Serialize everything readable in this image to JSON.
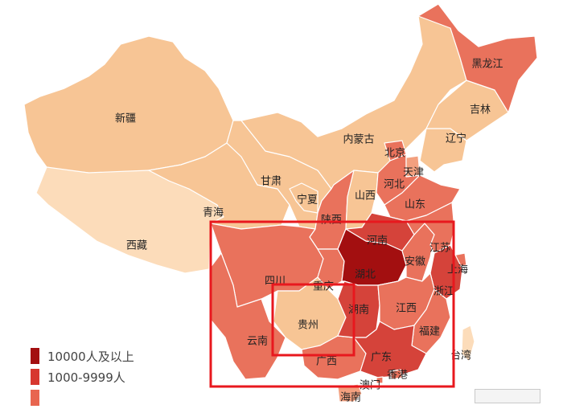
{
  "legend": {
    "items": [
      {
        "label": "10000人及以上",
        "color": "#a30f10"
      },
      {
        "label": "1000-9999人",
        "color": "#d7372f"
      },
      {
        "label": "",
        "color": "#e8654f"
      }
    ]
  },
  "colors": {
    "level_dark": "#a30f10",
    "level_high": "#d5433a",
    "level_mid": "#e9725c",
    "level_low": "#f3a07f",
    "level_lighter": "#f7c595",
    "level_lightest": "#fcdcba",
    "highlight_box": "#e8181e",
    "border": "#ffffff"
  },
  "provinces": [
    {
      "name": "新疆",
      "level": "level_lighter"
    },
    {
      "name": "西藏",
      "level": "level_lightest"
    },
    {
      "name": "青海",
      "level": "level_lighter"
    },
    {
      "name": "甘肃",
      "level": "level_lighter"
    },
    {
      "name": "内蒙古",
      "level": "level_lighter"
    },
    {
      "name": "宁夏",
      "level": "level_lighter"
    },
    {
      "name": "陕西",
      "level": "level_mid"
    },
    {
      "name": "山西",
      "level": "level_lighter"
    },
    {
      "name": "河北",
      "level": "level_mid"
    },
    {
      "name": "北京",
      "level": "level_mid"
    },
    {
      "name": "天津",
      "level": "level_low"
    },
    {
      "name": "山东",
      "level": "level_mid"
    },
    {
      "name": "辽宁",
      "level": "level_lighter"
    },
    {
      "name": "吉林",
      "level": "level_lighter"
    },
    {
      "name": "黑龙江",
      "level": "level_mid"
    },
    {
      "name": "四川",
      "level": "level_mid"
    },
    {
      "name": "重庆",
      "level": "level_mid"
    },
    {
      "name": "云南",
      "level": "level_mid"
    },
    {
      "name": "贵州",
      "level": "level_lighter"
    },
    {
      "name": "广西",
      "level": "level_mid"
    },
    {
      "name": "湖北",
      "level": "level_dark"
    },
    {
      "name": "湖南",
      "level": "level_high"
    },
    {
      "name": "河南",
      "level": "level_high"
    },
    {
      "name": "安徽",
      "level": "level_mid"
    },
    {
      "name": "江苏",
      "level": "level_mid"
    },
    {
      "name": "上海",
      "level": "level_mid"
    },
    {
      "name": "浙江",
      "level": "level_high"
    },
    {
      "name": "江西",
      "level": "level_mid"
    },
    {
      "name": "福建",
      "level": "level_mid"
    },
    {
      "name": "广东",
      "level": "level_high"
    },
    {
      "name": "香港",
      "level": "level_mid"
    },
    {
      "name": "澳门",
      "level": "level_mid"
    },
    {
      "name": "海南",
      "level": "level_low"
    },
    {
      "name": "台湾",
      "level": "level_lightest"
    }
  ],
  "highlight_boxes": [
    {
      "name": "south-central-region"
    },
    {
      "name": "guizhou-region"
    }
  ]
}
